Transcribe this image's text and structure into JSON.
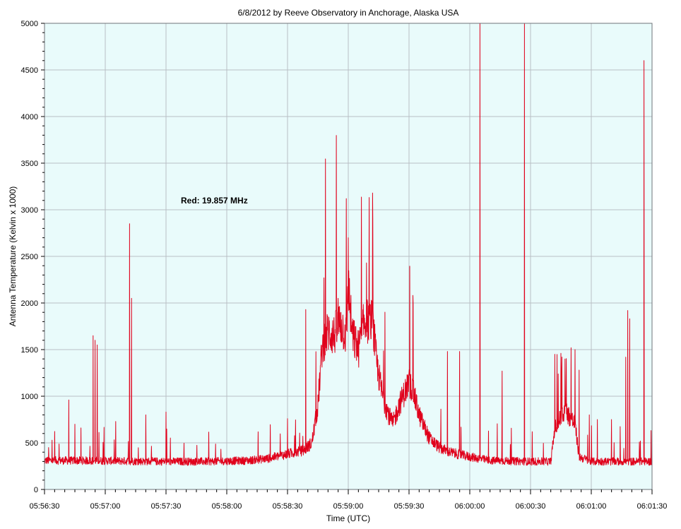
{
  "chart_data": {
    "type": "line",
    "title": "6/8/2012  by  Reeve Observatory  in  Anchorage, Alaska  USA",
    "xlabel": "Time (UTC)",
    "ylabel": "Antenna Temperature (Kelvin x 1000)",
    "annotation": "Red: 19.857 MHz",
    "ylim": [
      0,
      5000
    ],
    "yticks": [
      "0",
      "500",
      "1000",
      "1500",
      "2000",
      "2500",
      "3000",
      "3500",
      "4000",
      "4500",
      "5000"
    ],
    "xlim_seconds": [
      0,
      300
    ],
    "xticks": [
      "05:56:30",
      "05:57:00",
      "05:57:30",
      "05:58:00",
      "05:58:30",
      "05:59:00",
      "05:59:30",
      "06:00:00",
      "06:00:30",
      "06:01:00",
      "06:01:30"
    ],
    "grid": true,
    "colors": {
      "series": "#e0001b",
      "plot_bg": "#e9fbfb",
      "grid": "#b9bfc4"
    },
    "series": [
      {
        "name": "Red: 19.857 MHz",
        "baseline": [
          [
            0,
            310
          ],
          [
            20,
            310
          ],
          [
            40,
            305
          ],
          [
            60,
            300
          ],
          [
            80,
            300
          ],
          [
            100,
            310
          ],
          [
            110,
            330
          ],
          [
            120,
            380
          ],
          [
            128,
            420
          ],
          [
            132,
            500
          ],
          [
            135,
            900
          ],
          [
            137,
            1500
          ],
          [
            140,
            1700
          ],
          [
            143,
            1650
          ],
          [
            146,
            1800
          ],
          [
            149,
            1650
          ],
          [
            150,
            2200
          ],
          [
            152,
            1650
          ],
          [
            155,
            1500
          ],
          [
            158,
            1800
          ],
          [
            160,
            1800
          ],
          [
            162,
            1800
          ],
          [
            164,
            1350
          ],
          [
            167,
            1000
          ],
          [
            170,
            800
          ],
          [
            172,
            700
          ],
          [
            175,
            900
          ],
          [
            178,
            1050
          ],
          [
            180,
            1150
          ],
          [
            182,
            1050
          ],
          [
            185,
            800
          ],
          [
            190,
            550
          ],
          [
            195,
            450
          ],
          [
            200,
            400
          ],
          [
            210,
            350
          ],
          [
            220,
            310
          ],
          [
            240,
            300
          ],
          [
            250,
            300
          ],
          [
            252,
            650
          ],
          [
            257,
            850
          ],
          [
            262,
            700
          ],
          [
            264,
            350
          ],
          [
            270,
            300
          ],
          [
            300,
            300
          ]
        ],
        "spikes": [
          [
            2,
            450
          ],
          [
            12,
            960
          ],
          [
            15,
            700
          ],
          [
            18,
            660
          ],
          [
            24,
            1650
          ],
          [
            25,
            1600
          ],
          [
            26,
            1550
          ],
          [
            42,
            2850
          ],
          [
            43,
            2050
          ],
          [
            50,
            800
          ],
          [
            60,
            830
          ],
          [
            120,
            760
          ],
          [
            129,
            1930
          ],
          [
            138,
            2270
          ],
          [
            145,
            2050
          ],
          [
            149,
            3120
          ],
          [
            150,
            2700
          ],
          [
            159,
            2430
          ],
          [
            162,
            3180
          ],
          [
            182,
            1990
          ],
          [
            199,
            1480
          ],
          [
            205,
            1480
          ],
          [
            215,
            5000
          ],
          [
            226,
            1270
          ],
          [
            237,
            5000
          ],
          [
            252,
            1450
          ],
          [
            255,
            1460
          ],
          [
            257,
            1400
          ],
          [
            260,
            1520
          ],
          [
            262,
            1500
          ],
          [
            264,
            1280
          ],
          [
            269,
            800
          ],
          [
            273,
            750
          ],
          [
            280,
            750
          ],
          [
            287,
            1420
          ],
          [
            288,
            1920
          ],
          [
            289,
            1830
          ],
          [
            296,
            4600
          ]
        ]
      }
    ]
  }
}
